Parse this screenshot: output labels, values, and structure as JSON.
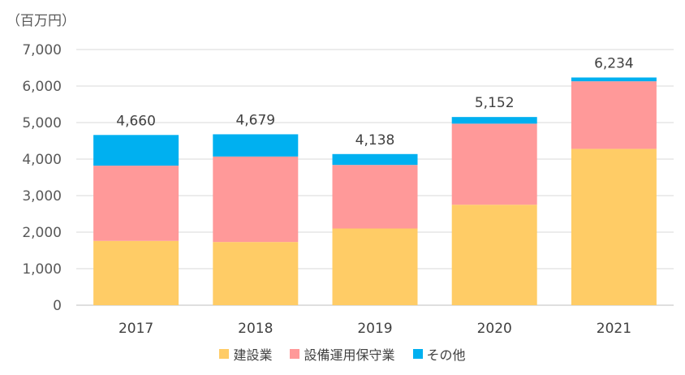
{
  "chart_data": {
    "type": "bar",
    "stacked": true,
    "unit_label": "（百万円）",
    "categories": [
      "2017",
      "2018",
      "2019",
      "2020",
      "2021"
    ],
    "series": [
      {
        "name": "建設業",
        "color": "#FFCC66",
        "values": [
          1760,
          1730,
          2100,
          2750,
          4280
        ]
      },
      {
        "name": "設備運用保守業",
        "color": "#FF9999",
        "values": [
          2060,
          2340,
          1740,
          2220,
          1850
        ]
      },
      {
        "name": "その他",
        "color": "#00B0F0",
        "values": [
          840,
          609,
          298,
          182,
          104
        ]
      }
    ],
    "totals": [
      "4,660",
      "4,679",
      "4,138",
      "5,152",
      "6,234"
    ],
    "total_values": [
      4660,
      4679,
      4138,
      5152,
      6234
    ],
    "ylim": [
      0,
      7000
    ],
    "y_ticks": [
      {
        "value": 0,
        "label": "0"
      },
      {
        "value": 1000,
        "label": "1,000"
      },
      {
        "value": 2000,
        "label": "2,000"
      },
      {
        "value": 3000,
        "label": "3,000"
      },
      {
        "value": 4000,
        "label": "4,000"
      },
      {
        "value": 5000,
        "label": "5,000"
      },
      {
        "value": 6000,
        "label": "6,000"
      },
      {
        "value": 7000,
        "label": "7,000"
      }
    ],
    "grid": true,
    "legend_position": "bottom"
  }
}
